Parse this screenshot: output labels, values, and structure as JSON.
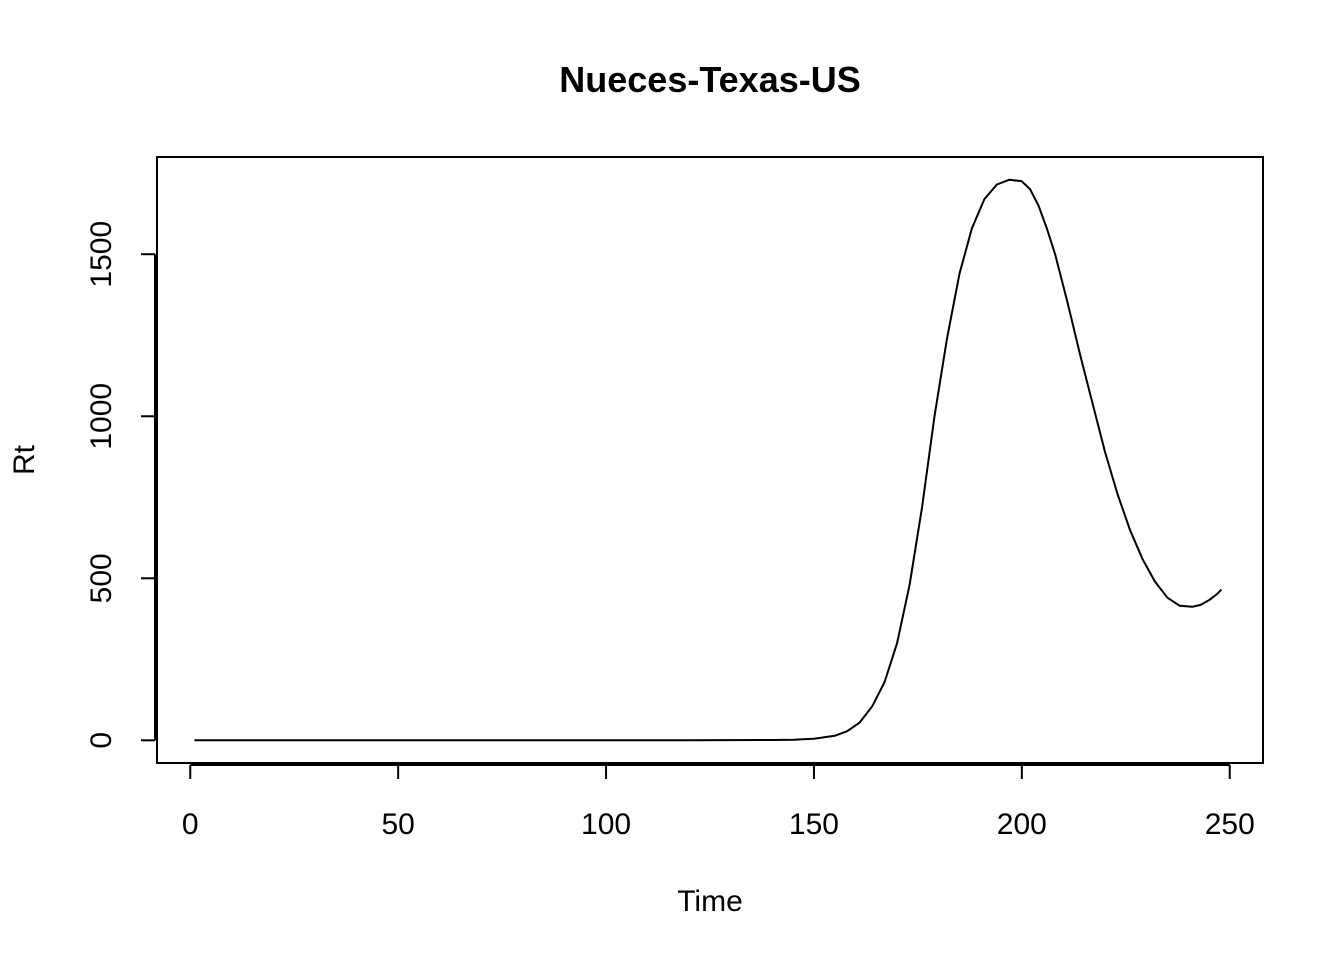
{
  "chart_data": {
    "type": "line",
    "title": "Nueces-Texas-US",
    "xlabel": "Time",
    "ylabel": "Rt",
    "xlim": [
      -8,
      258
    ],
    "ylim": [
      -70,
      1800
    ],
    "xticks": [
      0,
      50,
      100,
      150,
      200,
      250
    ],
    "yticks": [
      0,
      500,
      1000,
      1500
    ],
    "grid": false,
    "legend": "none",
    "series": [
      {
        "color": "#000000",
        "x": [
          1,
          20,
          40,
          60,
          80,
          100,
          120,
          140,
          145,
          150,
          155,
          158,
          161,
          164,
          167,
          170,
          173,
          176,
          179,
          182,
          185,
          188,
          191,
          194,
          197,
          200,
          202,
          204,
          206,
          208,
          211,
          214,
          217,
          220,
          223,
          226,
          229,
          232,
          235,
          238,
          241,
          243,
          245,
          247,
          248
        ],
        "y": [
          0,
          0,
          0,
          0,
          0,
          0,
          0,
          1,
          2,
          5,
          14,
          28,
          55,
          105,
          180,
          300,
          480,
          720,
          1000,
          1240,
          1440,
          1580,
          1670,
          1715,
          1730,
          1725,
          1700,
          1650,
          1580,
          1500,
          1350,
          1190,
          1040,
          890,
          760,
          650,
          560,
          490,
          440,
          415,
          412,
          418,
          432,
          452,
          465
        ]
      }
    ]
  }
}
